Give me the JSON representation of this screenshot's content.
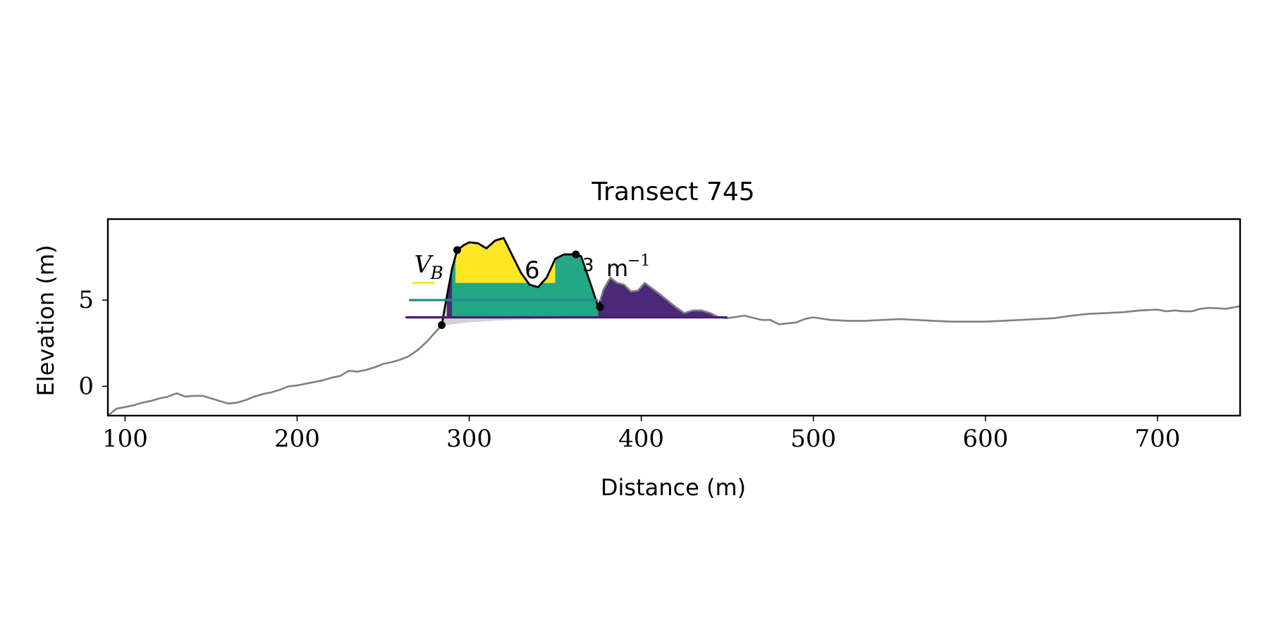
{
  "chart_data": {
    "type": "area",
    "title": "Transect 745",
    "xlabel": "Distance (m)",
    "ylabel": "Elevation (m)",
    "xlim": [
      90,
      748
    ],
    "ylim": [
      -1.7,
      9.7
    ],
    "xticks": [
      100,
      200,
      300,
      400,
      500,
      600,
      700
    ],
    "yticks": [
      0,
      5
    ],
    "grid": false,
    "annotation": {
      "prefix": "V",
      "subscript": "B",
      "visible_fragment": "6",
      "visible_fragment_2": "3",
      "unit": "m",
      "unit_exponent": "−1",
      "x": 268,
      "y": 6.6
    },
    "profile": {
      "x": [
        90,
        95,
        100,
        105,
        110,
        115,
        120,
        125,
        130,
        135,
        140,
        145,
        150,
        155,
        160,
        165,
        170,
        175,
        180,
        185,
        190,
        195,
        200,
        205,
        210,
        215,
        220,
        225,
        230,
        235,
        240,
        245,
        250,
        255,
        260,
        265,
        270,
        275,
        280,
        284,
        287,
        290,
        293,
        297,
        300,
        305,
        310,
        315,
        320,
        325,
        330,
        335,
        340,
        345,
        350,
        355,
        360,
        365,
        370,
        375,
        378,
        382,
        386,
        390,
        394,
        398,
        402,
        406,
        410,
        415,
        420,
        425,
        430,
        435,
        440,
        445,
        450,
        460,
        470,
        475,
        480,
        490,
        495,
        500,
        510,
        520,
        530,
        540,
        550,
        560,
        570,
        580,
        590,
        600,
        610,
        620,
        630,
        640,
        650,
        660,
        670,
        680,
        690,
        700,
        705,
        710,
        715,
        720,
        725,
        730,
        740,
        748
      ],
      "y": [
        -1.7,
        -1.3,
        -1.2,
        -1.1,
        -0.95,
        -0.85,
        -0.7,
        -0.6,
        -0.4,
        -0.6,
        -0.55,
        -0.55,
        -0.7,
        -0.85,
        -1.0,
        -0.95,
        -0.8,
        -0.6,
        -0.45,
        -0.35,
        -0.2,
        0.0,
        0.05,
        0.15,
        0.25,
        0.35,
        0.5,
        0.6,
        0.9,
        0.85,
        0.95,
        1.1,
        1.3,
        1.4,
        1.55,
        1.75,
        2.1,
        2.55,
        3.1,
        3.55,
        5.2,
        6.8,
        7.9,
        8.2,
        8.35,
        8.3,
        8.0,
        8.45,
        8.6,
        7.6,
        6.6,
        5.9,
        5.75,
        6.3,
        7.4,
        7.65,
        7.65,
        7.55,
        6.1,
        4.6,
        5.6,
        6.3,
        6.0,
        5.9,
        5.5,
        5.55,
        6.0,
        5.7,
        5.4,
        5.0,
        4.6,
        4.25,
        4.4,
        4.4,
        4.25,
        4.0,
        3.95,
        4.1,
        3.85,
        3.85,
        3.6,
        3.7,
        3.9,
        4.0,
        3.85,
        3.8,
        3.8,
        3.85,
        3.9,
        3.85,
        3.8,
        3.75,
        3.75,
        3.75,
        3.8,
        3.85,
        3.9,
        3.95,
        4.1,
        4.2,
        4.25,
        4.3,
        4.4,
        4.45,
        4.35,
        4.4,
        4.35,
        4.35,
        4.5,
        4.55,
        4.5,
        4.65
      ]
    },
    "dune_x_range": [
      284,
      376
    ],
    "markers": [
      {
        "x": 284,
        "y": 3.55
      },
      {
        "x": 293,
        "y": 7.9
      },
      {
        "x": 362,
        "y": 7.65
      },
      {
        "x": 376,
        "y": 4.6
      }
    ],
    "layers": [
      {
        "name": "lower",
        "level": 4.0,
        "baseline": 4.0,
        "x_start": 287,
        "x_end": 450,
        "color": "#481f71",
        "fill": "#4b2878",
        "legend_line_x": [
          263,
          450
        ]
      },
      {
        "name": "middle",
        "level": 5.0,
        "baseline": 4.0,
        "x_start": 290,
        "x_end": 375,
        "color": "#238a8d",
        "fill": "#22a884",
        "legend_line_x": [
          265,
          375
        ]
      },
      {
        "name": "upper",
        "level": 6.0,
        "baseline": 6.0,
        "x_start": 292,
        "x_end": 350,
        "color": "#fde725",
        "fill": "#fde725",
        "legend_line_x": [
          267,
          280
        ]
      }
    ],
    "colors": {
      "profile": "#808080",
      "dune_outline": "#000000",
      "grey_fill": "#d3d3d3"
    }
  }
}
